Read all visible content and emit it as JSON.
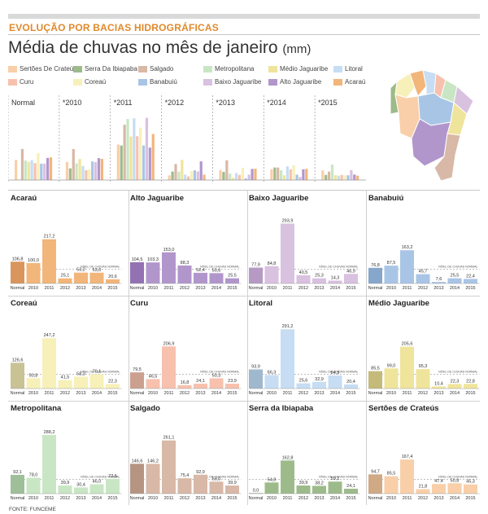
{
  "header": {
    "kicker": "EVOLUÇÃO POR BACIAS HIDROGRÁFICAS",
    "title": "Média de chuvas no mês de janeiro",
    "unit": "(mm)"
  },
  "source": "FONTE: FUNCEME",
  "threshold_label": "NÍVEL DE CHUVAS NORMAL",
  "legend": [
    {
      "name": "Sertões De Crateús",
      "color": "#f8cfa8"
    },
    {
      "name": "Serra Da Ibiapaba",
      "color": "#9dbb8a"
    },
    {
      "name": "Salgado",
      "color": "#d8b8a6"
    },
    {
      "name": "Metropolitana",
      "color": "#c9e6c4"
    },
    {
      "name": "Médio Jaguaribe",
      "color": "#efe49b"
    },
    {
      "name": "Litoral",
      "color": "#c6ddf3"
    },
    {
      "name": "Curu",
      "color": "#f7c1ad"
    },
    {
      "name": "Coreaú",
      "color": "#f7f0b8"
    },
    {
      "name": "Banabuiú",
      "color": "#a9c5e6"
    },
    {
      "name": "Baixo Jaguaribe",
      "color": "#d9c1e0"
    },
    {
      "name": "Alto Jaguaribe",
      "color": "#b196cc"
    },
    {
      "name": "Acaraú",
      "color": "#f2b57a"
    }
  ],
  "chart_data": [
    {
      "type": "bar",
      "title": "",
      "categories": [
        "Normal",
        "*2010",
        "*2011",
        "*2012",
        "*2013",
        "*2014",
        "*2015"
      ],
      "series": [
        {
          "name": "Sertões De Crateús",
          "values": [
            94.7,
            85.5,
            167.4,
            21.8,
            47.4,
            50.8,
            45.3
          ]
        },
        {
          "name": "Serra Da Ibiapaba",
          "values": [
            0.0,
            54.8,
            162.8,
            39.9,
            38.2,
            59.1,
            24.1
          ]
        },
        {
          "name": "Salgado",
          "values": [
            146.6,
            146.2,
            261.1,
            75.4,
            92.9,
            59.0,
            39.9
          ]
        },
        {
          "name": "Metropolitana",
          "values": [
            92.1,
            78.0,
            288.2,
            39.9,
            30.4,
            46.0,
            72.5
          ]
        },
        {
          "name": "Médio Jaguaribe",
          "values": [
            85.5,
            99.0,
            205.6,
            95.3,
            10.4,
            22.3,
            22.8
          ]
        },
        {
          "name": "Litoral",
          "values": [
            93.9,
            66.3,
            291.2,
            25.6,
            32.9,
            64.3,
            20.4
          ]
        },
        {
          "name": "Curu",
          "values": [
            79.5,
            46.5,
            206.9,
            16.8,
            24.1,
            50.3,
            23.9
          ]
        },
        {
          "name": "Coreaú",
          "values": [
            126.6,
            50.8,
            247.2,
            41.5,
            58.3,
            70.1,
            22.3
          ]
        },
        {
          "name": "Banabuiú",
          "values": [
            76.8,
            87.5,
            163.2,
            45.7,
            7.6,
            25.5,
            22.4
          ]
        },
        {
          "name": "Baixo Jaguaribe",
          "values": [
            77.9,
            84.8,
            293.9,
            40.5,
            25.3,
            14.3,
            46.9
          ]
        },
        {
          "name": "Alto Jaguaribe",
          "values": [
            104.5,
            103.3,
            153.0,
            88.3,
            52.4,
            50.6,
            25.5
          ]
        },
        {
          "name": "Acaraú",
          "values": [
            106.8,
            100.0,
            217.2,
            25.1,
            53.2,
            53.0,
            20.6
          ]
        }
      ]
    },
    {
      "type": "bar",
      "title": "Acaraú",
      "color": "#f2b57a",
      "normal_color": "#d9955c",
      "categories": [
        "Normal",
        "2010",
        "2011",
        "2012",
        "2013",
        "2014",
        "2015"
      ],
      "values": [
        106.8,
        100.0,
        217.2,
        25.1,
        53.2,
        53.0,
        20.6
      ],
      "labels": [
        "106,8",
        "100,0",
        "217,2",
        "25,1",
        "53,2",
        "53,0",
        "20,6"
      ]
    },
    {
      "type": "bar",
      "title": "Alto Jaguaribe",
      "color": "#b196cc",
      "normal_color": "#9272b3",
      "categories": [
        "Normal",
        "2010",
        "2011",
        "2012",
        "2013",
        "2014",
        "2015"
      ],
      "values": [
        104.5,
        103.3,
        153.0,
        88.3,
        52.4,
        50.6,
        25.5
      ],
      "labels": [
        "104,5",
        "103,3",
        "153,0",
        "88,3",
        "52,4",
        "50,6",
        "25,5"
      ]
    },
    {
      "type": "bar",
      "title": "Baixo Jaguaribe",
      "color": "#d9c1e0",
      "normal_color": "#b69ac4",
      "categories": [
        "Normal",
        "2010",
        "2011",
        "2012",
        "2013",
        "2014",
        "2015"
      ],
      "values": [
        77.9,
        84.8,
        293.9,
        40.5,
        25.3,
        14.3,
        46.9
      ],
      "labels": [
        "77,9",
        "84,8",
        "293,9",
        "40,5",
        "25,3",
        "14,3",
        "46,9"
      ]
    },
    {
      "type": "bar",
      "title": "Banabuiú",
      "color": "#a9c5e6",
      "normal_color": "#86a6cc",
      "categories": [
        "Normal",
        "2010",
        "2011",
        "2012",
        "2013",
        "2014",
        "2015"
      ],
      "values": [
        76.8,
        87.5,
        163.2,
        45.7,
        7.6,
        25.5,
        22.4
      ],
      "labels": [
        "76,8",
        "87,5",
        "163,2",
        "45,7",
        "7,6",
        "25,5",
        "22,4"
      ]
    },
    {
      "type": "bar",
      "title": "Coreaú",
      "color": "#f7f0b8",
      "normal_color": "#c9c294",
      "categories": [
        "Normal",
        "2010",
        "2011",
        "2012",
        "2013",
        "2014",
        "2015"
      ],
      "values": [
        126.6,
        50.8,
        247.2,
        41.5,
        58.3,
        70.1,
        22.3
      ],
      "labels": [
        "126,6",
        "50,8",
        "247,2",
        "41,5",
        "58,3",
        "70,1",
        "22,3"
      ]
    },
    {
      "type": "bar",
      "title": "Curu",
      "color": "#f7c1ad",
      "normal_color": "#cba08e",
      "categories": [
        "Normal",
        "2010",
        "2011",
        "2012",
        "2013",
        "2014",
        "2015"
      ],
      "values": [
        79.5,
        46.5,
        206.9,
        16.8,
        24.1,
        50.3,
        23.9
      ],
      "labels": [
        "79,5",
        "46,5",
        "206,9",
        "16,8",
        "24,1",
        "50,3",
        "23,9"
      ]
    },
    {
      "type": "bar",
      "title": "Litoral",
      "color": "#c6ddf3",
      "normal_color": "#9fb8ce",
      "categories": [
        "Normal",
        "2010",
        "2011",
        "2012",
        "2013",
        "2014",
        "2015"
      ],
      "values": [
        93.9,
        66.3,
        291.2,
        25.6,
        32.9,
        64.3,
        20.4
      ],
      "labels": [
        "93,9",
        "66,3",
        "291,2",
        "25,6",
        "32,9",
        "64,3",
        "20,4"
      ]
    },
    {
      "type": "bar",
      "title": "Médio Jaguaribe",
      "color": "#efe49b",
      "normal_color": "#c4ba7a",
      "categories": [
        "Normal",
        "2010",
        "2011",
        "2012",
        "2013",
        "2014",
        "2015"
      ],
      "values": [
        85.5,
        99.0,
        205.6,
        95.3,
        10.4,
        22.3,
        22.8
      ],
      "labels": [
        "85,5",
        "99,0",
        "205,6",
        "95,3",
        "10,4",
        "22,3",
        "22,8"
      ]
    },
    {
      "type": "bar",
      "title": "Metropolitana",
      "color": "#c9e6c4",
      "normal_color": "#9fbf9a",
      "categories": [
        "Normal",
        "2010",
        "2011",
        "2012",
        "2013",
        "2014",
        "2015"
      ],
      "values": [
        92.1,
        78.0,
        288.2,
        39.9,
        30.4,
        46.0,
        72.5
      ],
      "labels": [
        "92,1",
        "78,0",
        "288,2",
        "39,9",
        "30,4",
        "46,0",
        "72,5"
      ]
    },
    {
      "type": "bar",
      "title": "Salgado",
      "color": "#d8b8a6",
      "normal_color": "#b59482",
      "categories": [
        "Normal",
        "2010",
        "2011",
        "2012",
        "2013",
        "2014",
        "2015"
      ],
      "values": [
        146.6,
        146.2,
        261.1,
        75.4,
        92.9,
        59.0,
        39.9
      ],
      "labels": [
        "146,6",
        "146,2",
        "261,1",
        "75,4",
        "92,9",
        "59,0",
        "39,9"
      ]
    },
    {
      "type": "bar",
      "title": "Serra da Ibiapaba",
      "color": "#9dbb8a",
      "normal_color": "#7c9a6a",
      "categories": [
        "Normal",
        "2010",
        "2011",
        "2012",
        "2013",
        "2014",
        "2015"
      ],
      "values": [
        0.0,
        54.8,
        162.8,
        39.9,
        38.2,
        59.1,
        24.1
      ],
      "labels": [
        "0,0",
        "54,8",
        "162,8",
        "39,9",
        "38,2",
        "59,1",
        "24,1"
      ]
    },
    {
      "type": "bar",
      "title": "Sertões de Crateús",
      "color": "#f8cfa8",
      "normal_color": "#d0a985",
      "categories": [
        "Normal",
        "2010",
        "2011",
        "2012",
        "2013",
        "2014",
        "2015"
      ],
      "values": [
        94.7,
        85.5,
        167.4,
        21.8,
        47.4,
        50.8,
        45.3
      ],
      "labels": [
        "94,7",
        "85,5",
        "167,4",
        "21,8",
        "47,4",
        "50,8",
        "45,3"
      ]
    }
  ]
}
